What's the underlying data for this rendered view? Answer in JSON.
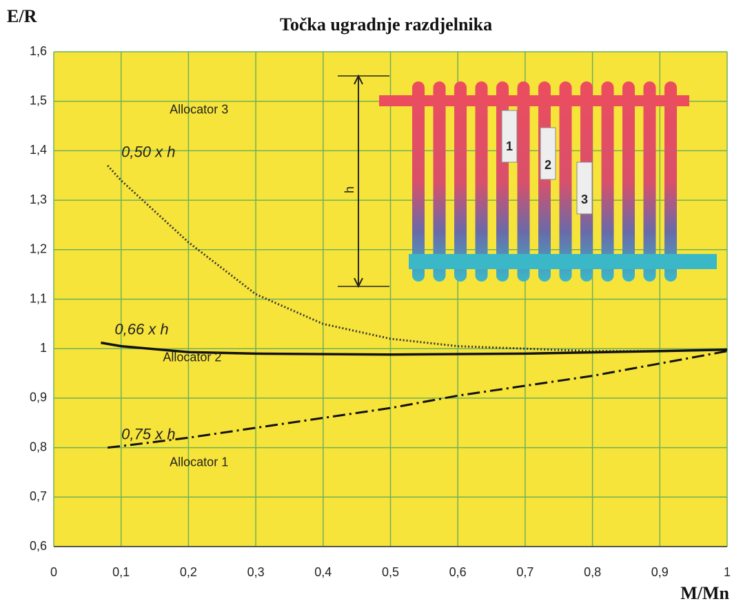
{
  "chart_data": {
    "type": "line",
    "title": "Točka ugradnje razdjelnika",
    "y_label": "E/R",
    "x_label": "M/Mn",
    "background": "#f7e43a",
    "grid": true,
    "grid_color": "#6fb05a",
    "xlim": [
      0,
      1
    ],
    "ylim": [
      0.6,
      1.6
    ],
    "xticks": [
      0,
      {
        "value": 0.1,
        "label": "0,1"
      },
      {
        "value": 0.2,
        "label": "0,2"
      },
      {
        "value": 0.3,
        "label": "0,3"
      },
      {
        "value": 0.4,
        "label": "0,4"
      },
      {
        "value": 0.5,
        "label": "0,5"
      },
      {
        "value": 0.6,
        "label": "0,6"
      },
      {
        "value": 0.7,
        "label": "0,7"
      },
      {
        "value": 0.8,
        "label": "0,8"
      },
      {
        "value": 0.9,
        "label": "0,9"
      },
      1
    ],
    "yticks": [
      {
        "value": 0.6,
        "label": "0,6"
      },
      {
        "value": 0.7,
        "label": "0,7"
      },
      {
        "value": 0.8,
        "label": "0,8"
      },
      {
        "value": 0.9,
        "label": "0,9"
      },
      1,
      {
        "value": 1.1,
        "label": "1,1"
      },
      {
        "value": 1.2,
        "label": "1,2"
      },
      {
        "value": 1.3,
        "label": "1,3"
      },
      {
        "value": 1.4,
        "label": "1,4"
      },
      {
        "value": 1.5,
        "label": "1,5"
      },
      {
        "value": 1.6,
        "label": "1,6"
      }
    ],
    "series": [
      {
        "name": "Allocator 3",
        "annotation": "0,50 x h",
        "color": "#333",
        "dash": "dotted",
        "x": [
          0.08,
          0.1,
          0.2,
          0.3,
          0.4,
          0.5,
          0.6,
          0.7,
          0.8,
          0.9,
          1.0
        ],
        "values": [
          1.37,
          1.34,
          1.215,
          1.11,
          1.05,
          1.02,
          1.005,
          1.0,
          0.995,
          0.995,
          0.998
        ]
      },
      {
        "name": "Allocator 2",
        "annotation": "0,66 x h",
        "color": "#111",
        "dash": "solid",
        "x": [
          0.07,
          0.1,
          0.2,
          0.3,
          0.5,
          0.7,
          0.9,
          1.0
        ],
        "values": [
          1.012,
          1.005,
          0.993,
          0.99,
          0.988,
          0.99,
          0.995,
          0.998
        ]
      },
      {
        "name": "Allocator 1",
        "annotation": "0,75 x h",
        "color": "#111",
        "dash": "dashdot",
        "x": [
          0.08,
          0.1,
          0.2,
          0.3,
          0.4,
          0.5,
          0.6,
          0.7,
          0.8,
          0.9,
          1.0
        ],
        "values": [
          0.8,
          0.803,
          0.82,
          0.84,
          0.86,
          0.88,
          0.905,
          0.925,
          0.945,
          0.97,
          0.995
        ]
      }
    ]
  },
  "illustration": {
    "h_label": "h",
    "allocators": [
      "1",
      "2",
      "3"
    ]
  }
}
